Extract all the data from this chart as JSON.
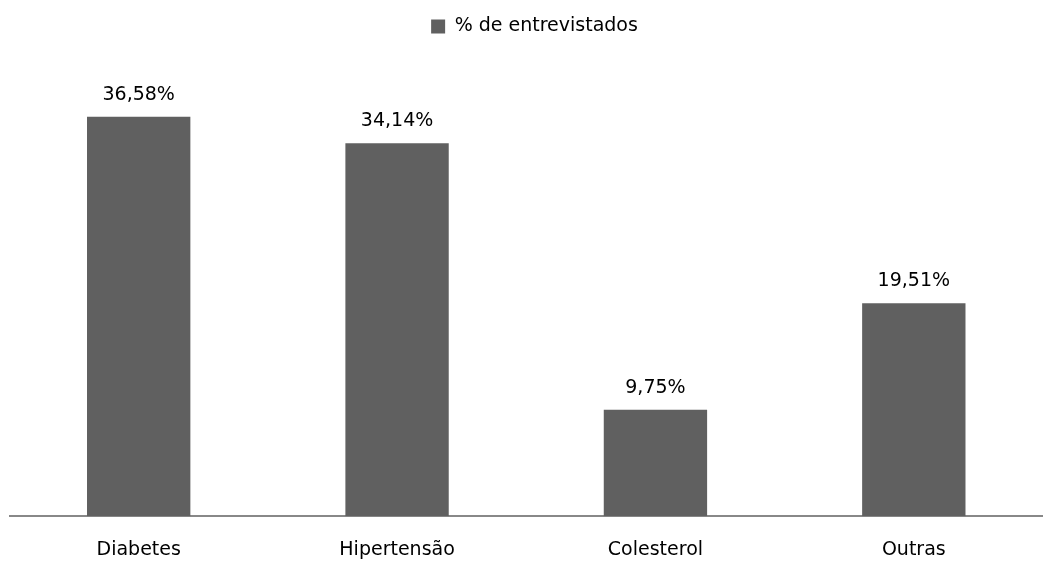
{
  "chart_data": {
    "type": "bar",
    "categories": [
      "Diabetes",
      "Hipertensão",
      "Colesterol",
      "Outras"
    ],
    "series": [
      {
        "name": "% de entrevistados",
        "color": "#606060",
        "values": [
          36.58,
          34.14,
          9.75,
          19.51
        ],
        "value_labels": [
          "36,58%",
          "34,14%",
          "9,75%",
          "19,51%"
        ]
      }
    ],
    "legend": "top"
  }
}
